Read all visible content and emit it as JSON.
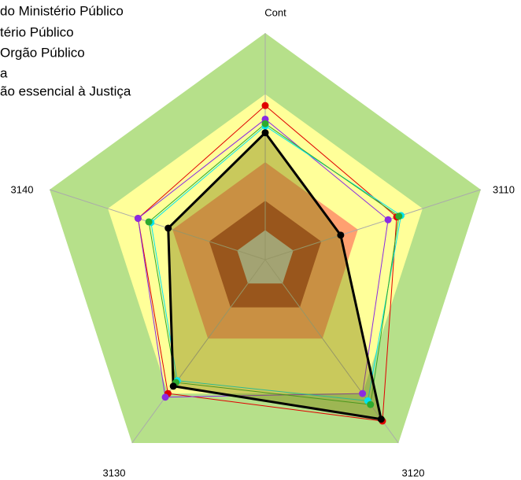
{
  "chart_data": {
    "type": "radar",
    "categories": [
      "Cont",
      "3110",
      "3120",
      "3130",
      "3140"
    ],
    "rlim": [
      0,
      100
    ],
    "bands": [
      {
        "value": 100,
        "color": "#b6e08a"
      },
      {
        "value": 73,
        "color": "#ffff99"
      },
      {
        "value": 43,
        "color": "#ffa070"
      },
      {
        "value": 26,
        "color": "#b04030"
      },
      {
        "value": 13,
        "color": "#c0c0c0"
      }
    ],
    "series": [
      {
        "name": "do Ministério Público",
        "color": "#e00000",
        "values": [
          68,
          61,
          88,
          73,
          59
        ]
      },
      {
        "name": "tério Público",
        "color": "#8a2be2",
        "values": [
          62,
          57,
          73,
          75,
          59
        ]
      },
      {
        "name": "Orgão Público",
        "color": "#00e5ee",
        "values": [
          59,
          63,
          77,
          66,
          53
        ]
      },
      {
        "name": "a",
        "color": "#2eaa2e",
        "values": [
          60,
          62,
          79,
          67,
          54
        ]
      },
      {
        "name": "ão essencial à Justiça",
        "color": "#000000",
        "fill": "rgba(120,120,0,0.4)",
        "values": [
          56,
          35,
          87,
          69,
          45
        ]
      }
    ]
  }
}
